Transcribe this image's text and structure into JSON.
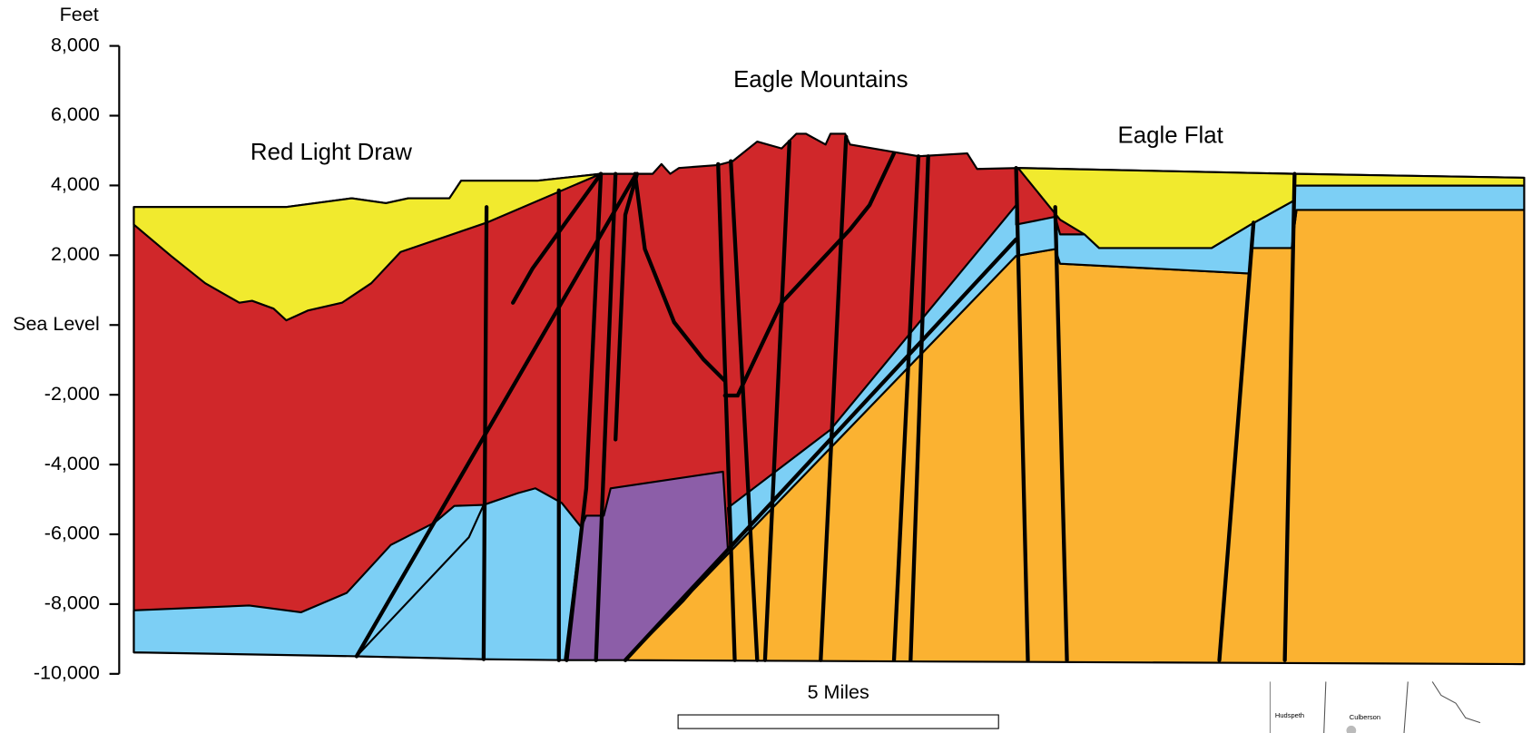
{
  "axis": {
    "label": "Feet",
    "ylim": [
      -10000,
      8000
    ],
    "yticks": [
      {
        "value": 8000,
        "label": "8,000"
      },
      {
        "value": 6000,
        "label": "6,000"
      },
      {
        "value": 4000,
        "label": "4,000"
      },
      {
        "value": 2000,
        "label": "2,000"
      },
      {
        "value": 0,
        "label": "Sea Level"
      },
      {
        "value": -2000,
        "label": "-2,000"
      },
      {
        "value": -4000,
        "label": "-4,000"
      },
      {
        "value": -6000,
        "label": "-6,000"
      },
      {
        "value": -8000,
        "label": "-8,000"
      },
      {
        "value": -10000,
        "label": "-10,000"
      }
    ]
  },
  "places": [
    "Red Light Draw",
    "Eagle Mountains",
    "Eagle Flat"
  ],
  "scale_bar": {
    "label": "5 Miles"
  },
  "inset_map": {
    "labels": [
      "Hudspeth",
      "Culberson"
    ]
  }
}
